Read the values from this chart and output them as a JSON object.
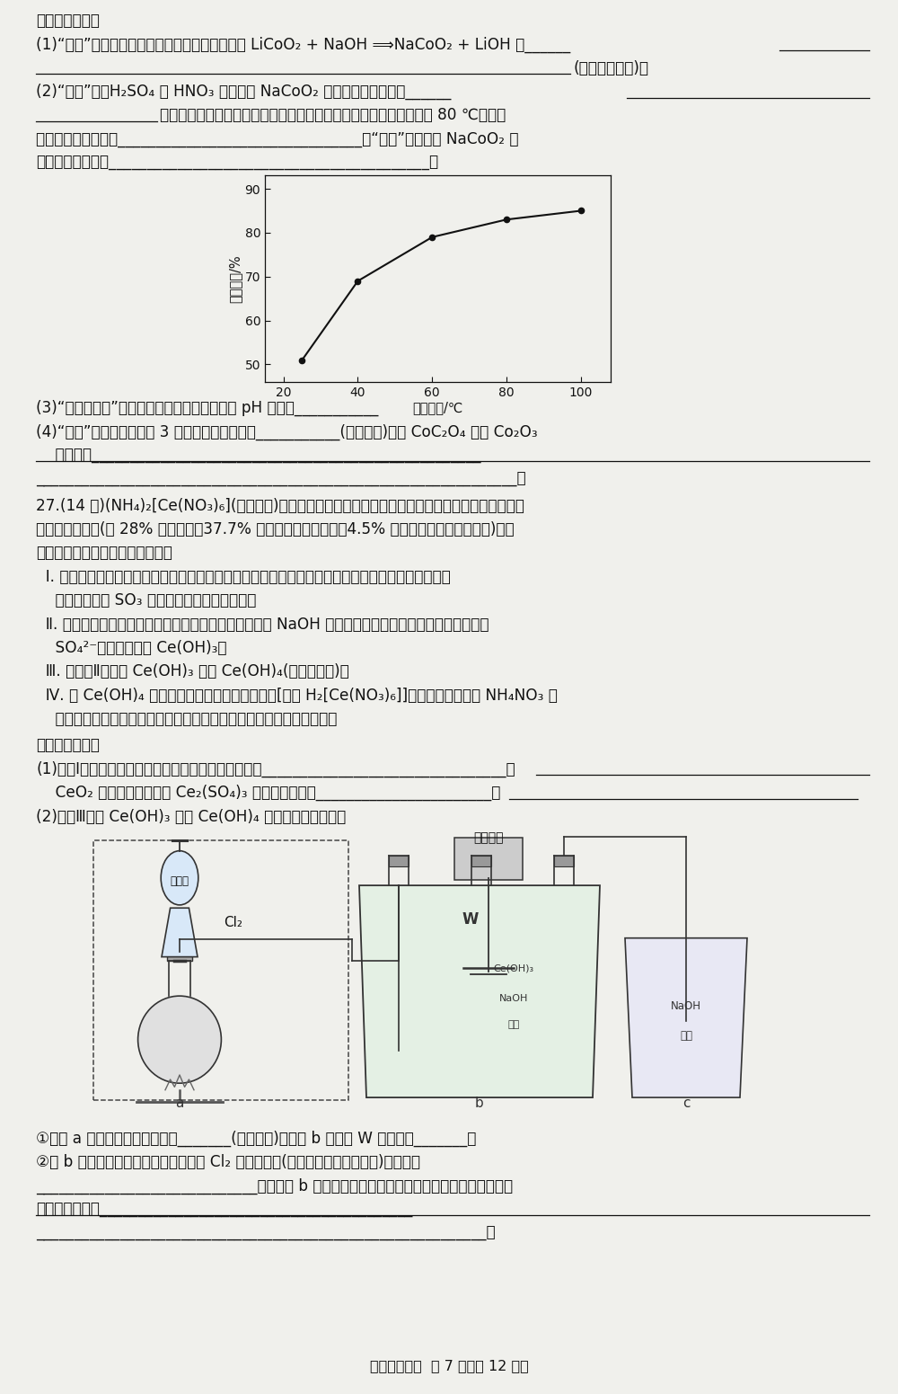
{
  "bg_color": "#f0f0ec",
  "text_color": "#111111",
  "graph_x": [
    25,
    40,
    60,
    80,
    100
  ],
  "graph_y": [
    51,
    69,
    79,
    83,
    85
  ],
  "graph_xlabel": "浸出温度/℃",
  "graph_ylabel": "鉤浸出率/%",
  "graph_xlim": [
    15,
    108
  ],
  "graph_ylim": [
    46,
    93
  ],
  "graph_xticks": [
    20,
    40,
    60,
    80,
    100
  ],
  "graph_yticks": [
    50,
    60,
    70,
    80,
    90
  ],
  "footer": "理科绻合试题  第 7 页（共 12 页）"
}
